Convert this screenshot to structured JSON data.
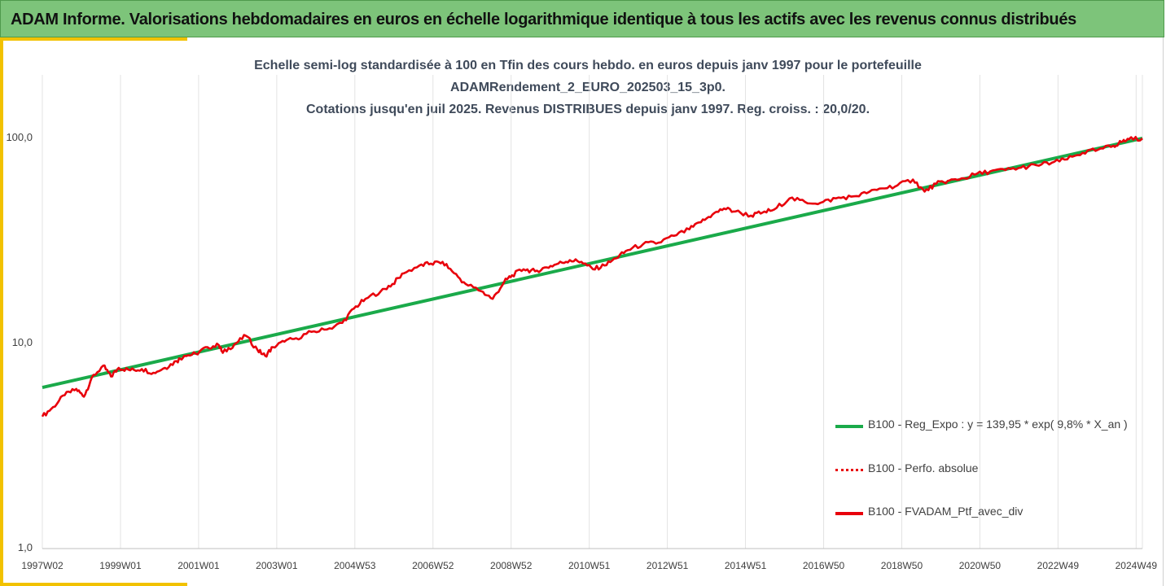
{
  "banner": {
    "title": "ADAM Informe. Valorisations hebdomadaires en euros en échelle logarithmique identique à tous les actifs avec les revenus connus distribués"
  },
  "chart_data": {
    "type": "line",
    "subtitle_lines": [
      "Echelle semi-log standardisée à 100 en Tfin des cours hebdo.  en euros depuis janv 1997 pour le portefeuille",
      "ADAMRendement_2_EURO_202503_15_3p0.",
      "Cotations  jusqu'en juil 2025. Revenus DISTRIBUES depuis janv 1997. Reg. croiss. : 20,0/20."
    ],
    "y_scale": "log",
    "ylim": [
      1,
      100
    ],
    "y_ticks": [
      "100,0",
      "10,0",
      "1,0"
    ],
    "x_ticks": [
      "1997W02",
      "1999W01",
      "2001W01",
      "2003W01",
      "2004W53",
      "2006W52",
      "2008W52",
      "2010W51",
      "2012W51",
      "2014W51",
      "2016W50",
      "2018W50",
      "2020W50",
      "2022W49",
      "2024W49"
    ],
    "xlim": [
      1997.02,
      2025.55
    ],
    "grid": "vertical",
    "legend_position": "right",
    "series": [
      {
        "name": "B100 - Reg_Expo : y = 139,95 * exp( 9,8% *  X_an )",
        "color": "#1aaa4a",
        "style": "solid",
        "x": [
          1997.02,
          2025.55
        ],
        "y": [
          6.1,
          100
        ]
      },
      {
        "name": "B100 - Perfo. absolue",
        "color": "#e8000b",
        "style": "dotted",
        "x": [],
        "y": []
      },
      {
        "name": "B100 - FVADAM_Ptf_avec_div",
        "color": "#e8000b",
        "style": "solid",
        "x": [
          1997.02,
          1997.3,
          1997.6,
          1997.9,
          1998.1,
          1998.3,
          1998.6,
          1998.8,
          1999.0,
          1999.3,
          1999.6,
          1999.9,
          2000.2,
          2000.5,
          2000.7,
          2001.0,
          2001.3,
          2001.6,
          2001.7,
          2002.0,
          2002.3,
          2002.6,
          2002.8,
          2003.0,
          2003.3,
          2003.6,
          2004.0,
          2004.4,
          2004.8,
          2005.1,
          2005.4,
          2005.8,
          2006.1,
          2006.4,
          2006.8,
          2007.1,
          2007.4,
          2007.7,
          2008.0,
          2008.4,
          2008.7,
          2009.0,
          2009.2,
          2009.5,
          2009.8,
          2010.1,
          2010.4,
          2010.7,
          2011.0,
          2011.3,
          2011.6,
          2011.9,
          2012.2,
          2012.6,
          2013.0,
          2013.4,
          2013.8,
          2014.1,
          2014.4,
          2014.7,
          2015.0,
          2015.4,
          2015.7,
          2016.0,
          2016.4,
          2016.8,
          2017.2,
          2017.6,
          2018.0,
          2018.4,
          2018.8,
          2019.2,
          2019.6,
          2019.9,
          2020.2,
          2020.5,
          2020.8,
          2021.2,
          2021.6,
          2022.0,
          2022.4,
          2022.8,
          2023.2,
          2023.6,
          2024.0,
          2024.4,
          2024.8,
          2025.0,
          2025.2,
          2025.55
        ],
        "y": [
          4.4,
          4.9,
          5.6,
          6.0,
          5.5,
          6.8,
          7.8,
          6.9,
          7.6,
          7.4,
          7.5,
          7.2,
          7.6,
          8.2,
          8.7,
          8.9,
          9.6,
          9.8,
          9.0,
          9.9,
          10.9,
          9.3,
          8.7,
          9.6,
          10.2,
          10.6,
          11.4,
          11.7,
          12.6,
          14.8,
          16.5,
          18.0,
          19.5,
          22.0,
          24.0,
          24.5,
          25.0,
          22.0,
          19.5,
          18.0,
          16.5,
          20.0,
          21.5,
          23.0,
          22.5,
          23.5,
          24.5,
          25.5,
          25.0,
          23.0,
          24.0,
          26.0,
          28.5,
          30.5,
          31.0,
          33.5,
          36.0,
          39.0,
          42.5,
          45.5,
          44.0,
          42.0,
          43.5,
          45.0,
          51.0,
          49.0,
          48.5,
          51.0,
          52.0,
          54.0,
          57.0,
          59.0,
          63.0,
          55.0,
          60.0,
          62.0,
          63.0,
          66.5,
          69.0,
          70.0,
          72.0,
          74.0,
          76.0,
          79.0,
          85.0,
          88.0,
          92.0,
          96.0,
          99.0,
          100.0
        ]
      }
    ]
  }
}
